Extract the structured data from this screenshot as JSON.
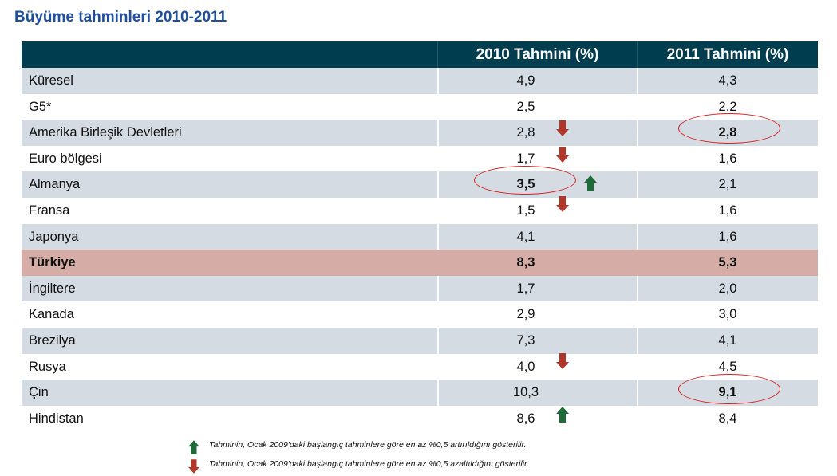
{
  "title": "Büyüme tahminleri 2010-2011",
  "table": {
    "headers": [
      "",
      "2010 Tahmini (%)",
      "2011 Tahmini (%)"
    ],
    "rows": [
      {
        "country": "Küresel",
        "v2010": "4,9",
        "v2011": "4,3"
      },
      {
        "country": "G5*",
        "v2010": "2,5",
        "v2011": "2.2"
      },
      {
        "country": "Amerika Birleşik Devletleri",
        "v2010": "2,8",
        "v2011": "2,8"
      },
      {
        "country": "Euro bölgesi",
        "v2010": "1,7",
        "v2011": "1,6"
      },
      {
        "country": "Almanya",
        "v2010": "3,5",
        "v2011": "2,1"
      },
      {
        "country": "Fransa",
        "v2010": "1,5",
        "v2011": "1,6"
      },
      {
        "country": "Japonya",
        "v2010": "4,1",
        "v2011": "1,6"
      },
      {
        "country": "Türkiye",
        "v2010": "8,3",
        "v2011": "5,3"
      },
      {
        "country": "İngiltere",
        "v2010": "1,7",
        "v2011": "2,0"
      },
      {
        "country": "Kanada",
        "v2010": "2,9",
        "v2011": "3,0"
      },
      {
        "country": "Brezilya",
        "v2010": "7,3",
        "v2011": "4,1"
      },
      {
        "country": "Rusya",
        "v2010": "4,0",
        "v2011": "4,5"
      },
      {
        "country": "Çin",
        "v2010": "10,3",
        "v2011": "9,1"
      },
      {
        "country": "Hindistan",
        "v2010": "8,6",
        "v2011": "8,4"
      }
    ]
  },
  "legend": {
    "up": "Tahminin, Ocak 2009'daki başlangıç tahminlere göre en az %0,5 artırıldığını gösterilir.",
    "down": "Tahminin, Ocak 2009'daki başlangıç tahminlere göre en az %0,5 azaltıldığını gösterilir."
  },
  "colors": {
    "header_bg": "#003d4f",
    "row_shade": "#d4dbe2",
    "row_highlight": "#d5aca6",
    "title": "#1f4e9c",
    "arrow_up": "#1e6b3a",
    "arrow_down": "#b0372a",
    "circle": "#d62020"
  }
}
